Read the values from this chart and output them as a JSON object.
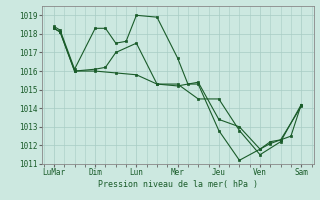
{
  "background_color": "#cce8e0",
  "line_color": "#1a5c2a",
  "x_labels": [
    "LuMar",
    "Dim",
    "Lun",
    "Mer",
    "Jeu",
    "Ven",
    "Sam"
  ],
  "xlabel": "Pression niveau de la mer( hPa )",
  "ylim": [
    1011,
    1019.5
  ],
  "yticks": [
    1011,
    1012,
    1013,
    1014,
    1015,
    1016,
    1017,
    1018,
    1019
  ],
  "series1_x": [
    0.0,
    0.15,
    0.5,
    1.0,
    1.5,
    2.0,
    2.5,
    3.0,
    3.5,
    4.0,
    4.5,
    5.0,
    5.5,
    6.0
  ],
  "series1_y": [
    1018.3,
    1018.1,
    1016.0,
    1016.0,
    1015.9,
    1015.8,
    1015.3,
    1015.3,
    1014.5,
    1014.5,
    1012.8,
    1011.5,
    1012.2,
    1014.2
  ],
  "series2_x": [
    0.0,
    0.15,
    0.5,
    1.0,
    1.25,
    1.5,
    2.0,
    2.5,
    3.0,
    3.5,
    4.0,
    4.5,
    5.0,
    5.25,
    5.5,
    6.0
  ],
  "series2_y": [
    1018.3,
    1018.1,
    1016.0,
    1016.1,
    1016.2,
    1017.0,
    1017.5,
    1015.3,
    1015.2,
    1015.4,
    1013.4,
    1013.0,
    1011.8,
    1012.1,
    1012.3,
    1014.1
  ],
  "series3_x": [
    0.0,
    0.15,
    0.5,
    1.0,
    1.25,
    1.5,
    1.75,
    2.0,
    2.5,
    3.0,
    3.25,
    3.5,
    4.0,
    4.5,
    5.0,
    5.25,
    5.5,
    5.75,
    6.0
  ],
  "series3_y": [
    1018.4,
    1018.2,
    1016.1,
    1018.3,
    1018.3,
    1017.5,
    1017.6,
    1019.0,
    1018.9,
    1016.7,
    1015.3,
    1015.3,
    1012.8,
    1011.2,
    1011.8,
    1012.2,
    1012.3,
    1012.5,
    1014.2
  ],
  "xlim": [
    -0.3,
    6.3
  ],
  "x_tick_pos": [
    0,
    1,
    2,
    3,
    4,
    5,
    6
  ]
}
